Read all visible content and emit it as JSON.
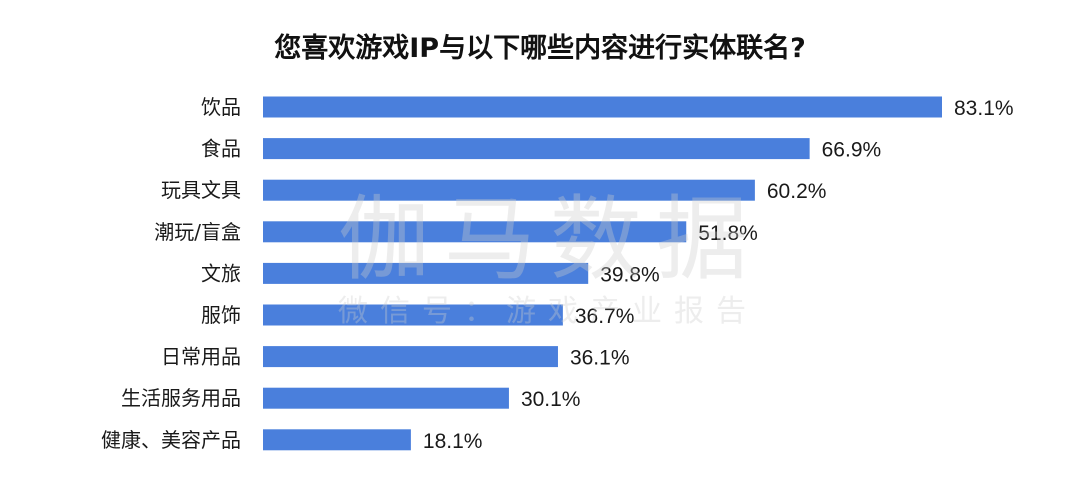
{
  "chart_data": {
    "type": "bar",
    "orientation": "horizontal",
    "title": "您喜欢游戏IP与以下哪些内容进行实体联名?",
    "categories": [
      "饮品",
      "食品",
      "玩具文具",
      "潮玩/盲盒",
      "文旅",
      "服饰",
      "日常用品",
      "生活服务用品",
      "健康、美容产品"
    ],
    "values": [
      83.1,
      66.9,
      60.2,
      51.8,
      39.8,
      36.7,
      36.1,
      30.1,
      18.1
    ],
    "value_labels": [
      "83.1%",
      "66.9%",
      "60.2%",
      "51.8%",
      "39.8%",
      "36.7%",
      "36.1%",
      "30.1%",
      "18.1%"
    ],
    "unit": "%",
    "bar_color": "#4a7fdc",
    "xlabel": "",
    "ylabel": "",
    "grid": false,
    "legend": "none"
  },
  "watermark": {
    "main": "伽马数据",
    "sub": "微信号：游戏产业报告"
  }
}
